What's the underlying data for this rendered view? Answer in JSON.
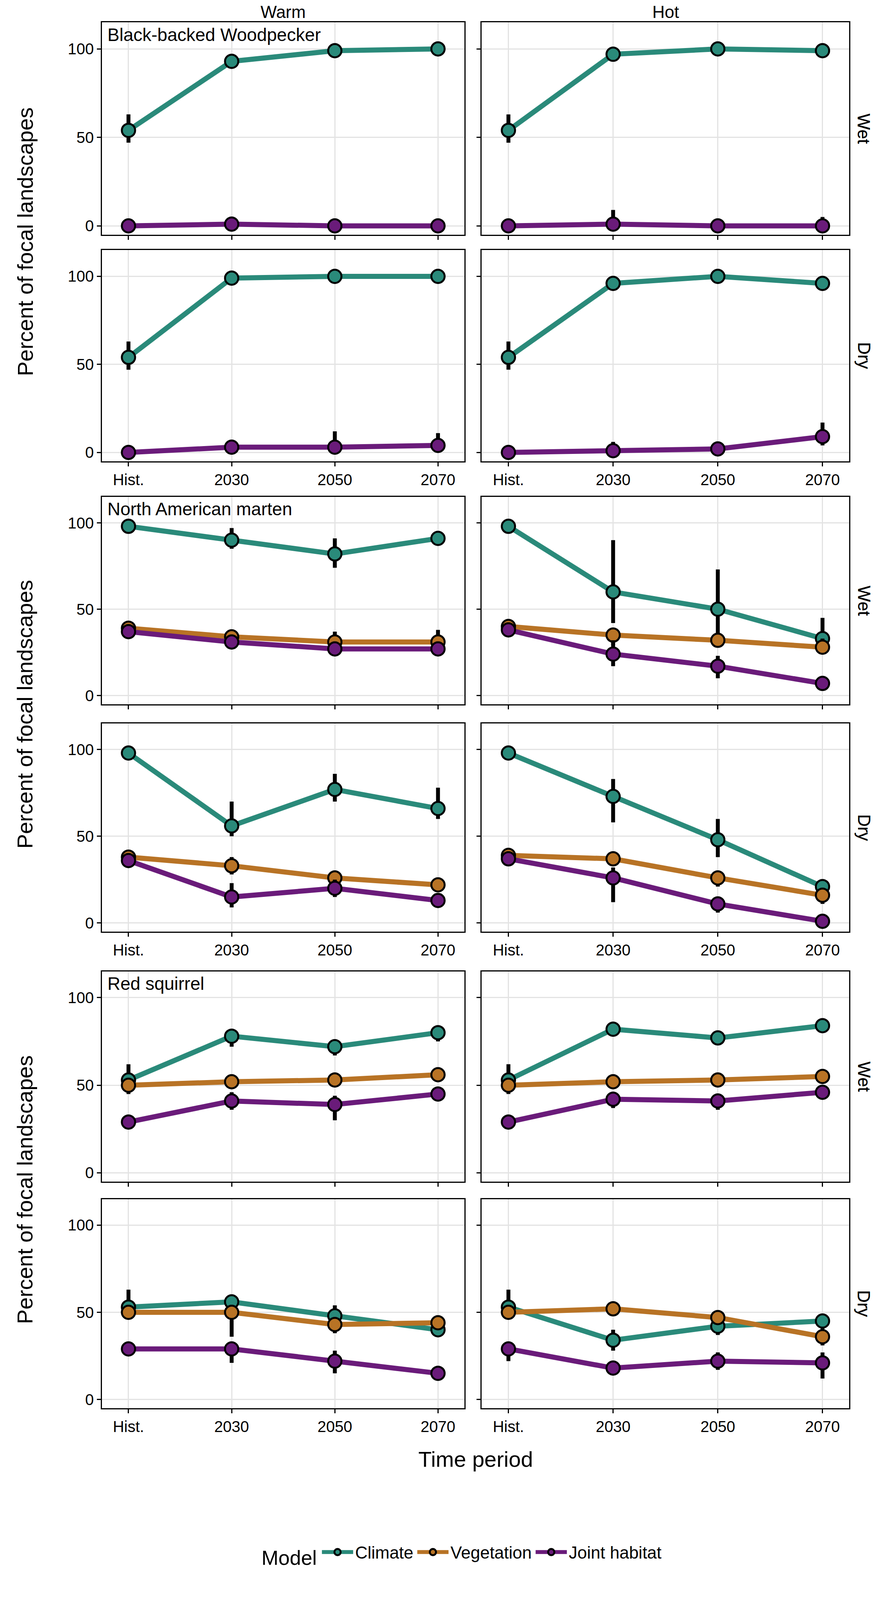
{
  "chart_data": {
    "type": "line",
    "columns": [
      "Warm",
      "Hot"
    ],
    "rows": [
      "Wet",
      "Dry"
    ],
    "x_label": "Time period",
    "y_label": "Percent of focal landscapes",
    "legend_title": "Model",
    "legend": "bottom",
    "grid": true,
    "marker": "circle",
    "categories": [
      "Hist.",
      "2030",
      "2050",
      "2070"
    ],
    "ylim": [
      -5,
      115
    ],
    "yticks": [
      0,
      50,
      100
    ],
    "series_styles": [
      {
        "name": "Climate",
        "color": "#2a8a7a"
      },
      {
        "name": "Vegetation",
        "color": "#b87325"
      },
      {
        "name": "Joint habitat",
        "color": "#6a1b7a"
      }
    ],
    "species": [
      {
        "label": "Black-backed Woodpecker",
        "panels": [
          {
            "series": [
              {
                "name": "Climate",
                "values": [
                  54,
                  93,
                  99,
                  100
                ],
                "ci_low": [
                  47,
                  92,
                  98,
                  99
                ],
                "ci_high": [
                  63,
                  94,
                  100,
                  100
                ]
              },
              {
                "name": "Joint habitat",
                "values": [
                  0,
                  1,
                  0,
                  0
                ],
                "ci_low": [
                  0,
                  0,
                  0,
                  0
                ],
                "ci_high": [
                  2,
                  3,
                  1,
                  4
                ]
              }
            ]
          },
          {
            "series": [
              {
                "name": "Climate",
                "values": [
                  54,
                  97,
                  100,
                  99
                ],
                "ci_low": [
                  47,
                  96,
                  99,
                  98
                ],
                "ci_high": [
                  63,
                  98,
                  100,
                  100
                ]
              },
              {
                "name": "Joint habitat",
                "values": [
                  0,
                  1,
                  0,
                  0
                ],
                "ci_low": [
                  0,
                  0,
                  0,
                  0
                ],
                "ci_high": [
                  2,
                  9,
                  1,
                  5
                ]
              }
            ]
          },
          {
            "series": [
              {
                "name": "Climate",
                "values": [
                  54,
                  99,
                  100,
                  100
                ],
                "ci_low": [
                  47,
                  98,
                  99,
                  99
                ],
                "ci_high": [
                  63,
                  100,
                  100,
                  100
                ]
              },
              {
                "name": "Joint habitat",
                "values": [
                  0,
                  3,
                  3,
                  4
                ],
                "ci_low": [
                  0,
                  0,
                  0,
                  0
                ],
                "ci_high": [
                  2,
                  6,
                  12,
                  11
                ]
              }
            ]
          },
          {
            "series": [
              {
                "name": "Climate",
                "values": [
                  54,
                  96,
                  100,
                  96
                ],
                "ci_low": [
                  47,
                  95,
                  99,
                  95
                ],
                "ci_high": [
                  63,
                  97,
                  100,
                  97
                ]
              },
              {
                "name": "Joint habitat",
                "values": [
                  0,
                  1,
                  2,
                  9
                ],
                "ci_low": [
                  0,
                  0,
                  0,
                  4
                ],
                "ci_high": [
                  2,
                  6,
                  6,
                  17
                ]
              }
            ]
          }
        ]
      },
      {
        "label": "North American marten",
        "panels": [
          {
            "series": [
              {
                "name": "Climate",
                "values": [
                  98,
                  90,
                  82,
                  91
                ],
                "ci_low": [
                  97,
                  85,
                  74,
                  89
                ],
                "ci_high": [
                  99,
                  97,
                  91,
                  93
                ]
              },
              {
                "name": "Vegetation",
                "values": [
                  39,
                  34,
                  31,
                  31
                ],
                "ci_low": [
                  36,
                  30,
                  28,
                  28
                ],
                "ci_high": [
                  42,
                  38,
                  37,
                  38
                ]
              },
              {
                "name": "Joint habitat",
                "values": [
                  37,
                  31,
                  27,
                  27
                ],
                "ci_low": [
                  35,
                  27,
                  23,
                  23
                ],
                "ci_high": [
                  40,
                  35,
                  31,
                  31
                ]
              }
            ]
          },
          {
            "series": [
              {
                "name": "Climate",
                "values": [
                  98,
                  60,
                  50,
                  33
                ],
                "ci_low": [
                  97,
                  42,
                  30,
                  25
                ],
                "ci_high": [
                  99,
                  90,
                  73,
                  45
                ]
              },
              {
                "name": "Vegetation",
                "values": [
                  40,
                  35,
                  32,
                  28
                ],
                "ci_low": [
                  37,
                  29,
                  28,
                  24
                ],
                "ci_high": [
                  43,
                  38,
                  36,
                  33
                ]
              },
              {
                "name": "Joint habitat",
                "values": [
                  38,
                  24,
                  17,
                  7
                ],
                "ci_low": [
                  35,
                  17,
                  10,
                  4
                ],
                "ci_high": [
                  40,
                  32,
                  23,
                  10
                ]
              }
            ]
          },
          {
            "series": [
              {
                "name": "Climate",
                "values": [
                  98,
                  56,
                  77,
                  66
                ],
                "ci_low": [
                  97,
                  50,
                  70,
                  60
                ],
                "ci_high": [
                  99,
                  70,
                  86,
                  78
                ]
              },
              {
                "name": "Vegetation",
                "values": [
                  38,
                  33,
                  26,
                  22
                ],
                "ci_low": [
                  35,
                  28,
                  23,
                  19
                ],
                "ci_high": [
                  40,
                  38,
                  29,
                  26
                ]
              },
              {
                "name": "Joint habitat",
                "values": [
                  36,
                  15,
                  20,
                  13
                ],
                "ci_low": [
                  34,
                  9,
                  15,
                  10
                ],
                "ci_high": [
                  39,
                  23,
                  25,
                  16
                ]
              }
            ]
          },
          {
            "series": [
              {
                "name": "Climate",
                "values": [
                  98,
                  73,
                  48,
                  21
                ],
                "ci_low": [
                  97,
                  58,
                  38,
                  17
                ],
                "ci_high": [
                  99,
                  83,
                  60,
                  25
                ]
              },
              {
                "name": "Vegetation",
                "values": [
                  39,
                  37,
                  26,
                  16
                ],
                "ci_low": [
                  36,
                  33,
                  21,
                  11
                ],
                "ci_high": [
                  41,
                  40,
                  30,
                  20
                ]
              },
              {
                "name": "Joint habitat",
                "values": [
                  37,
                  26,
                  11,
                  1
                ],
                "ci_low": [
                  34,
                  12,
                  6,
                  0
                ],
                "ci_high": [
                  39,
                  32,
                  15,
                  4
                ]
              }
            ]
          }
        ]
      },
      {
        "label": "Red squirrel",
        "panels": [
          {
            "series": [
              {
                "name": "Climate",
                "values": [
                  53,
                  78,
                  72,
                  80
                ],
                "ci_low": [
                  45,
                  72,
                  67,
                  75
                ],
                "ci_high": [
                  62,
                  82,
                  76,
                  84
                ]
              },
              {
                "name": "Vegetation",
                "values": [
                  50,
                  52,
                  53,
                  56
                ],
                "ci_low": [
                  48,
                  50,
                  51,
                  54
                ],
                "ci_high": [
                  52,
                  54,
                  56,
                  58
                ]
              },
              {
                "name": "Joint habitat",
                "values": [
                  29,
                  41,
                  39,
                  45
                ],
                "ci_low": [
                  27,
                  36,
                  30,
                  41
                ],
                "ci_high": [
                  31,
                  46,
                  44,
                  49
                ]
              }
            ]
          },
          {
            "series": [
              {
                "name": "Climate",
                "values": [
                  53,
                  82,
                  77,
                  84
                ],
                "ci_low": [
                  45,
                  79,
                  74,
                  81
                ],
                "ci_high": [
                  62,
                  84,
                  80,
                  87
                ]
              },
              {
                "name": "Vegetation",
                "values": [
                  50,
                  52,
                  53,
                  55
                ],
                "ci_low": [
                  48,
                  50,
                  51,
                  53
                ],
                "ci_high": [
                  52,
                  54,
                  55,
                  57
                ]
              },
              {
                "name": "Joint habitat",
                "values": [
                  29,
                  42,
                  41,
                  46
                ],
                "ci_low": [
                  27,
                  37,
                  36,
                  42
                ],
                "ci_high": [
                  31,
                  45,
                  45,
                  50
                ]
              }
            ]
          },
          {
            "series": [
              {
                "name": "Climate",
                "values": [
                  53,
                  56,
                  48,
                  40
                ],
                "ci_low": [
                  46,
                  52,
                  44,
                  37
                ],
                "ci_high": [
                  63,
                  59,
                  54,
                  44
                ]
              },
              {
                "name": "Vegetation",
                "values": [
                  50,
                  50,
                  43,
                  44
                ],
                "ci_low": [
                  47,
                  36,
                  38,
                  40
                ],
                "ci_high": [
                  52,
                  53,
                  47,
                  48
                ]
              },
              {
                "name": "Joint habitat",
                "values": [
                  29,
                  29,
                  22,
                  15
                ],
                "ci_low": [
                  27,
                  21,
                  15,
                  11
                ],
                "ci_high": [
                  31,
                  33,
                  28,
                  19
                ]
              }
            ]
          },
          {
            "series": [
              {
                "name": "Climate",
                "values": [
                  53,
                  34,
                  42,
                  45
                ],
                "ci_low": [
                  46,
                  28,
                  37,
                  41
                ],
                "ci_high": [
                  63,
                  40,
                  46,
                  48
                ]
              },
              {
                "name": "Vegetation",
                "values": [
                  50,
                  52,
                  47,
                  36
                ],
                "ci_low": [
                  47,
                  48,
                  43,
                  31
                ],
                "ci_high": [
                  52,
                  56,
                  50,
                  41
                ]
              },
              {
                "name": "Joint habitat",
                "values": [
                  29,
                  18,
                  22,
                  21
                ],
                "ci_low": [
                  22,
                  14,
                  17,
                  12
                ],
                "ci_high": [
                  33,
                  22,
                  27,
                  27
                ]
              }
            ]
          }
        ]
      }
    ]
  }
}
